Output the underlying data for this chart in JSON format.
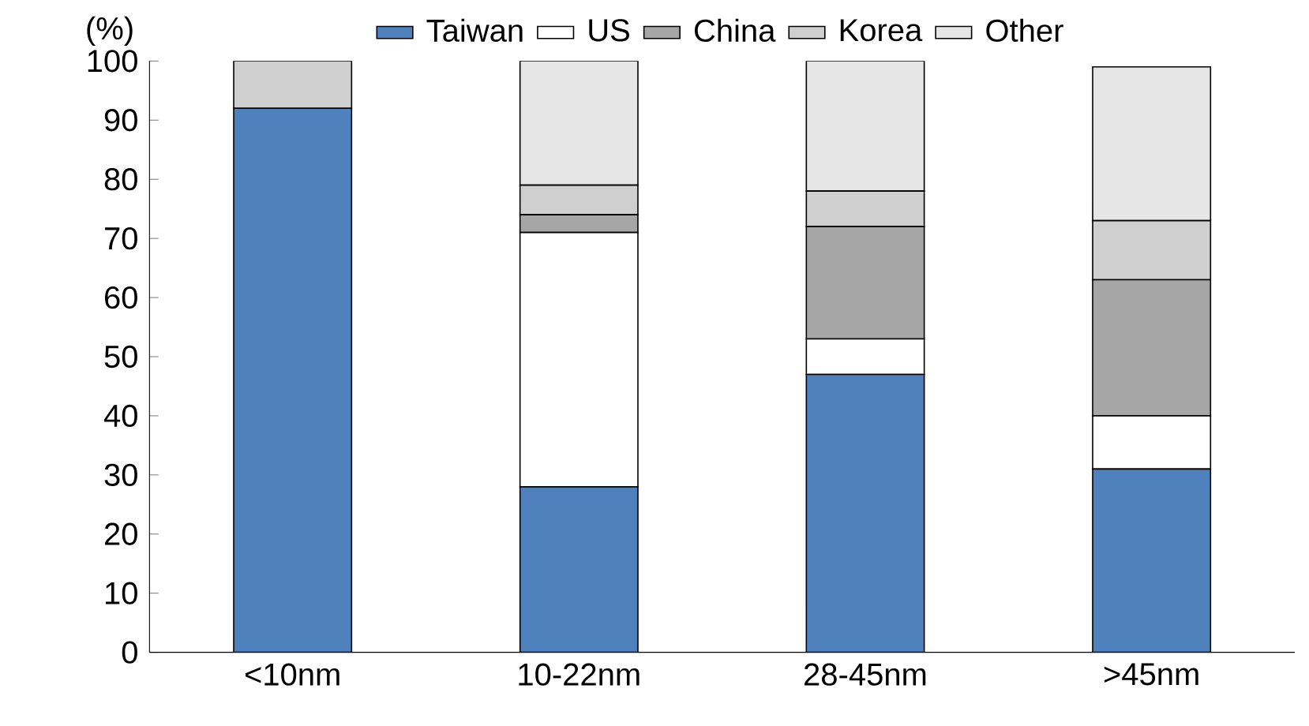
{
  "chart_data": {
    "type": "bar",
    "stacked": true,
    "ylabel": "(%)",
    "categories": [
      "<10nm",
      "10-22nm",
      "28-45nm",
      ">45nm"
    ],
    "series": [
      {
        "name": "Taiwan",
        "color": "#4f81bd",
        "values": [
          92,
          28,
          47,
          31
        ]
      },
      {
        "name": "US",
        "color": "#ffffff",
        "values": [
          0,
          43,
          6,
          9
        ]
      },
      {
        "name": "China",
        "color": "#a6a6a6",
        "values": [
          0,
          3,
          19,
          23
        ]
      },
      {
        "name": "Korea",
        "color": "#cfcfcf",
        "values": [
          8,
          5,
          6,
          10
        ]
      },
      {
        "name": "Other",
        "color": "#e6e6e6",
        "values": [
          0,
          21,
          22,
          26
        ]
      }
    ],
    "ylim": [
      0,
      100
    ],
    "yticks": [
      0,
      10,
      20,
      30,
      40,
      50,
      60,
      70,
      80,
      90,
      100
    ],
    "legend": "top",
    "grid": false
  }
}
